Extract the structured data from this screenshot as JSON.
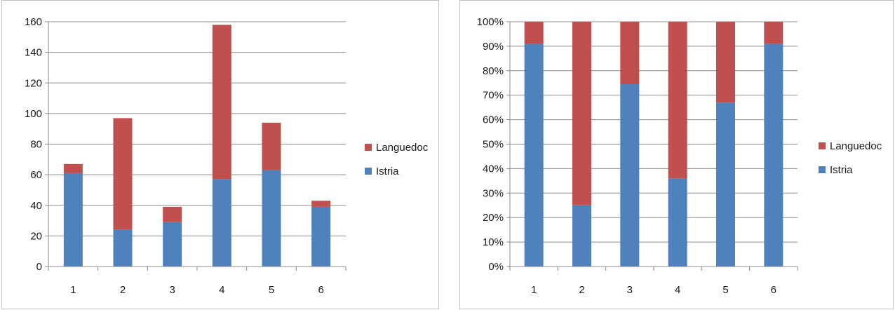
{
  "colors": {
    "istria": "#4f81bd",
    "languedoc": "#c0504d",
    "grid": "#8c8c8c",
    "axis": "#8c8c8c"
  },
  "chart_data": [
    {
      "type": "bar",
      "stacked": true,
      "categories": [
        "1",
        "2",
        "3",
        "4",
        "5",
        "6"
      ],
      "series": [
        {
          "name": "Istria",
          "values": [
            61,
            24,
            29,
            57,
            63,
            39
          ],
          "color": "#4f81bd"
        },
        {
          "name": "Languedoc",
          "values": [
            6,
            73,
            10,
            101,
            31,
            4
          ],
          "color": "#c0504d"
        }
      ],
      "ylim": [
        0,
        160
      ],
      "yticks": [
        0,
        20,
        40,
        60,
        80,
        100,
        120,
        140,
        160
      ],
      "ytick_labels": [
        "0",
        "20",
        "40",
        "60",
        "80",
        "100",
        "120",
        "140",
        "160"
      ],
      "grid": true,
      "legend": {
        "position": "right",
        "entries": [
          "Languedoc",
          "Istria"
        ]
      }
    },
    {
      "type": "bar",
      "stacked": true,
      "normalized": true,
      "categories": [
        "1",
        "2",
        "3",
        "4",
        "5",
        "6"
      ],
      "series": [
        {
          "name": "Istria",
          "values": [
            0.91,
            0.25,
            0.745,
            0.36,
            0.67,
            0.91
          ],
          "color": "#4f81bd"
        },
        {
          "name": "Languedoc",
          "values": [
            0.09,
            0.75,
            0.255,
            0.64,
            0.33,
            0.09
          ],
          "color": "#c0504d"
        }
      ],
      "ylim": [
        0,
        1
      ],
      "yticks": [
        0,
        0.1,
        0.2,
        0.3,
        0.4,
        0.5,
        0.6,
        0.7,
        0.8,
        0.9,
        1.0
      ],
      "ytick_labels": [
        "0%",
        "10%",
        "20%",
        "30%",
        "40%",
        "50%",
        "60%",
        "70%",
        "80%",
        "90%",
        "100%"
      ],
      "grid": true,
      "legend": {
        "position": "right",
        "entries": [
          "Languedoc",
          "Istria"
        ]
      }
    }
  ]
}
